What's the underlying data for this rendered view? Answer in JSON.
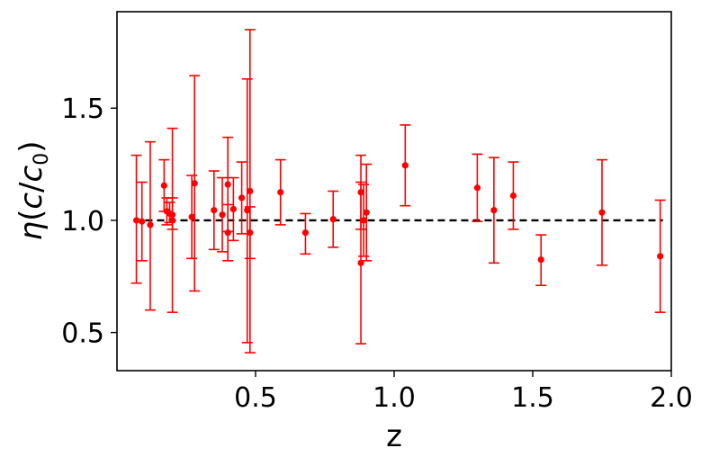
{
  "chart_data": {
    "type": "scatter",
    "title": "",
    "xlabel": "z",
    "ylabel_parts": {
      "eta": "η",
      "open": "(",
      "c": "c",
      "slash": "/",
      "c0": "c",
      "sub": "0",
      "close": ")"
    },
    "xlim": [
      0.0,
      2.0
    ],
    "ylim": [
      0.33,
      1.93
    ],
    "xticks": [
      0.5,
      1.0,
      1.5,
      2.0
    ],
    "xtick_labels": [
      "0.5",
      "1.0",
      "1.5",
      "2.0"
    ],
    "yticks": [
      0.5,
      1.0,
      1.5
    ],
    "ytick_labels": [
      "0.5",
      "1.0",
      "1.5"
    ],
    "grid": false,
    "legend": "none",
    "colors": {
      "points": "#ff0000",
      "reference": "#000000"
    },
    "reference_line": {
      "y": 1.0,
      "x_range": [
        0.06,
        1.97
      ],
      "style": "dashed"
    },
    "points": [
      {
        "x": 0.07,
        "y": 1.0,
        "lo": 0.72,
        "hi": 1.29
      },
      {
        "x": 0.09,
        "y": 0.995,
        "lo": 0.82,
        "hi": 1.17
      },
      {
        "x": 0.12,
        "y": 0.98,
        "lo": 0.6,
        "hi": 1.35
      },
      {
        "x": 0.17,
        "y": 1.155,
        "lo": 1.04,
        "hi": 1.27
      },
      {
        "x": 0.18,
        "y": 1.04,
        "lo": 0.98,
        "hi": 1.1
      },
      {
        "x": 0.19,
        "y": 1.03,
        "lo": 0.99,
        "hi": 1.08
      },
      {
        "x": 0.2,
        "y": 1.0,
        "lo": 0.59,
        "hi": 1.41
      },
      {
        "x": 0.2,
        "y": 1.025,
        "lo": 0.96,
        "hi": 1.1
      },
      {
        "x": 0.27,
        "y": 1.015,
        "lo": 0.83,
        "hi": 1.2
      },
      {
        "x": 0.28,
        "y": 1.165,
        "lo": 0.685,
        "hi": 1.645
      },
      {
        "x": 0.35,
        "y": 1.045,
        "lo": 0.87,
        "hi": 1.22
      },
      {
        "x": 0.38,
        "y": 1.025,
        "lo": 0.86,
        "hi": 1.19
      },
      {
        "x": 0.4,
        "y": 1.16,
        "lo": 0.95,
        "hi": 1.37
      },
      {
        "x": 0.4,
        "y": 0.945,
        "lo": 0.82,
        "hi": 1.07
      },
      {
        "x": 0.42,
        "y": 1.05,
        "lo": 0.91,
        "hi": 1.19
      },
      {
        "x": 0.45,
        "y": 1.1,
        "lo": 0.94,
        "hi": 1.26
      },
      {
        "x": 0.47,
        "y": 1.045,
        "lo": 0.455,
        "hi": 1.63
      },
      {
        "x": 0.48,
        "y": 1.13,
        "lo": 0.41,
        "hi": 1.85
      },
      {
        "x": 0.48,
        "y": 0.945,
        "lo": 0.83,
        "hi": 1.06
      },
      {
        "x": 0.59,
        "y": 1.125,
        "lo": 0.98,
        "hi": 1.27
      },
      {
        "x": 0.68,
        "y": 0.945,
        "lo": 0.85,
        "hi": 1.03
      },
      {
        "x": 0.78,
        "y": 1.005,
        "lo": 0.88,
        "hi": 1.13
      },
      {
        "x": 0.88,
        "y": 1.125,
        "lo": 0.96,
        "hi": 1.29
      },
      {
        "x": 0.88,
        "y": 0.81,
        "lo": 0.45,
        "hi": 1.17
      },
      {
        "x": 0.89,
        "y": 1.0,
        "lo": 0.84,
        "hi": 1.16
      },
      {
        "x": 0.9,
        "y": 1.035,
        "lo": 0.82,
        "hi": 1.25
      },
      {
        "x": 1.04,
        "y": 1.245,
        "lo": 1.065,
        "hi": 1.425
      },
      {
        "x": 1.3,
        "y": 1.145,
        "lo": 0.995,
        "hi": 1.295
      },
      {
        "x": 1.36,
        "y": 1.045,
        "lo": 0.81,
        "hi": 1.28
      },
      {
        "x": 1.43,
        "y": 1.11,
        "lo": 0.96,
        "hi": 1.26
      },
      {
        "x": 1.53,
        "y": 0.825,
        "lo": 0.71,
        "hi": 0.935
      },
      {
        "x": 1.75,
        "y": 1.035,
        "lo": 0.8,
        "hi": 1.27
      },
      {
        "x": 1.96,
        "y": 0.84,
        "lo": 0.59,
        "hi": 1.09
      }
    ]
  }
}
